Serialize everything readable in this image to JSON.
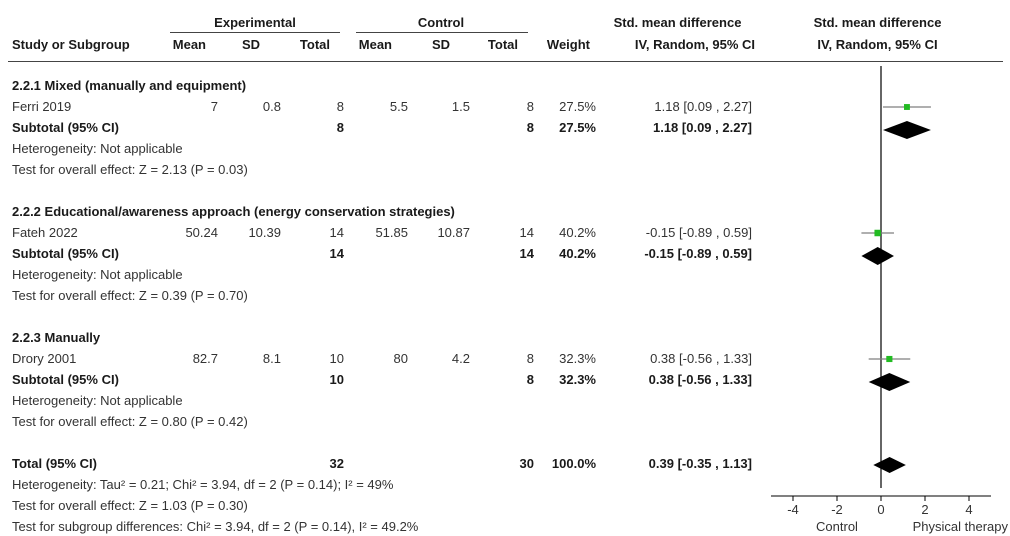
{
  "header": {
    "group_experimental": "Experimental",
    "group_control": "Control",
    "smd_title": "Std. mean difference",
    "study_col": "Study or Subgroup",
    "mean": "Mean",
    "sd": "SD",
    "total": "Total",
    "weight": "Weight",
    "method": "IV, Random, 95% CI"
  },
  "subgroups": [
    {
      "title": "2.2.1 Mixed (manually and equipment)",
      "study": {
        "name": "Ferri 2019",
        "e_mean": "7",
        "e_sd": "0.8",
        "e_total": "8",
        "c_mean": "5.5",
        "c_sd": "1.5",
        "c_total": "8",
        "weight": "27.5%",
        "ci": "1.18 [0.09 , 2.27]"
      },
      "subtotal": {
        "label": "Subtotal (95% CI)",
        "e_total": "8",
        "c_total": "8",
        "weight": "27.5%",
        "ci": "1.18 [0.09 , 2.27]"
      },
      "heterogeneity": "Heterogeneity: Not applicable",
      "overall": "Test for overall effect: Z = 2.13 (P = 0.03)"
    },
    {
      "title": "2.2.2 Educational/awareness approach (energy conservation strategies)",
      "study": {
        "name": "Fateh 2022",
        "e_mean": "50.24",
        "e_sd": "10.39",
        "e_total": "14",
        "c_mean": "51.85",
        "c_sd": "10.87",
        "c_total": "14",
        "weight": "40.2%",
        "ci": "-0.15 [-0.89 , 0.59]"
      },
      "subtotal": {
        "label": "Subtotal (95% CI)",
        "e_total": "14",
        "c_total": "14",
        "weight": "40.2%",
        "ci": "-0.15 [-0.89 , 0.59]"
      },
      "heterogeneity": "Heterogeneity: Not applicable",
      "overall": "Test for overall effect: Z = 0.39 (P = 0.70)"
    },
    {
      "title": "2.2.3 Manually",
      "study": {
        "name": "Drory 2001",
        "e_mean": "82.7",
        "e_sd": "8.1",
        "e_total": "10",
        "c_mean": "80",
        "c_sd": "4.2",
        "c_total": "8",
        "weight": "32.3%",
        "ci": "0.38 [-0.56 , 1.33]"
      },
      "subtotal": {
        "label": "Subtotal (95% CI)",
        "e_total": "10",
        "c_total": "8",
        "weight": "32.3%",
        "ci": "0.38 [-0.56 , 1.33]"
      },
      "heterogeneity": "Heterogeneity: Not applicable",
      "overall": "Test for overall effect: Z = 0.80 (P = 0.42)"
    }
  ],
  "total": {
    "label": "Total (95% CI)",
    "e_total": "32",
    "c_total": "30",
    "weight": "100.0%",
    "ci": "0.39 [-0.35 , 1.13]",
    "heterogeneity": "Heterogeneity: Tau² = 0.21; Chi² = 3.94, df = 2 (P = 0.14); I² = 49%",
    "overall": "Test for overall effect: Z = 1.03 (P = 0.30)",
    "subgroup_diff": "Test for subgroup differences: Chi² = 3.94, df = 2 (P = 0.14), I² = 49.2%"
  },
  "chart_data": {
    "type": "forest",
    "xlim": [
      -5,
      5
    ],
    "xticks": [
      -4,
      -2,
      0,
      2,
      4
    ],
    "xtick_labels": [
      "-4",
      "-2",
      "0",
      "2",
      "4"
    ],
    "favours_left": "Control",
    "favours_right": "Physical therapy",
    "colors": {
      "study_marker": "#22bb22",
      "diamond": "#000000",
      "ci_line": "#7f7f7f"
    },
    "studies": [
      {
        "name": "Ferri 2019",
        "est": 1.18,
        "lo": 0.09,
        "hi": 2.27,
        "weight": 27.5
      },
      {
        "name": "Fateh 2022",
        "est": -0.15,
        "lo": -0.89,
        "hi": 0.59,
        "weight": 40.2
      },
      {
        "name": "Drory 2001",
        "est": 0.38,
        "lo": -0.56,
        "hi": 1.33,
        "weight": 32.3
      }
    ],
    "subtotals": [
      {
        "est": 1.18,
        "lo": 0.09,
        "hi": 2.27
      },
      {
        "est": -0.15,
        "lo": -0.89,
        "hi": 0.59
      },
      {
        "est": 0.38,
        "lo": -0.56,
        "hi": 1.33
      }
    ],
    "overall": {
      "est": 0.39,
      "lo": -0.35,
      "hi": 1.13
    }
  }
}
